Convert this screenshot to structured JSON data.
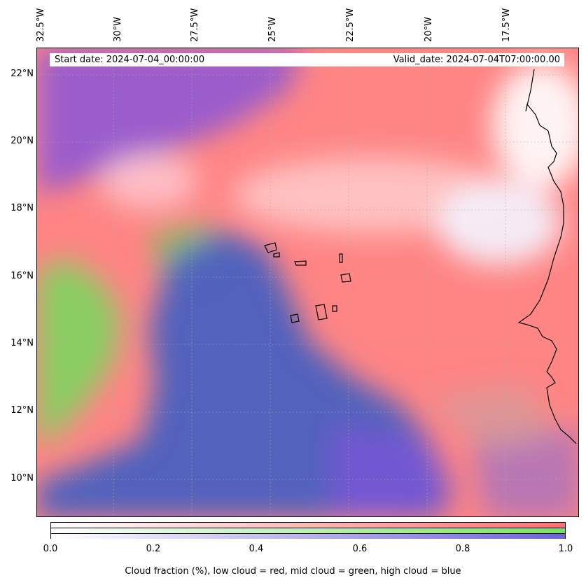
{
  "map": {
    "top_labels": [
      "32.5°W",
      "30°W",
      "27.5°W",
      "25°W",
      "22.5°W",
      "20°W",
      "17.5°W"
    ],
    "left_labels": [
      "22°N",
      "20°N",
      "18°N",
      "16°N",
      "14°N",
      "12°N",
      "10°N"
    ],
    "start_date": "Start date: 2024-07-04_00:00:00",
    "valid_date": "Valid_date: 2024-07-04T07:00:00.00"
  },
  "colorbar": {
    "ticks": [
      "0.0",
      "0.2",
      "0.4",
      "0.6",
      "0.8",
      "1.0"
    ],
    "label": "Cloud fraction (%), low cloud = red, mid cloud = green, high cloud = blue",
    "colors": {
      "low": "#ff7070",
      "mid": "#7be066",
      "high": "#6b62e0"
    }
  }
}
